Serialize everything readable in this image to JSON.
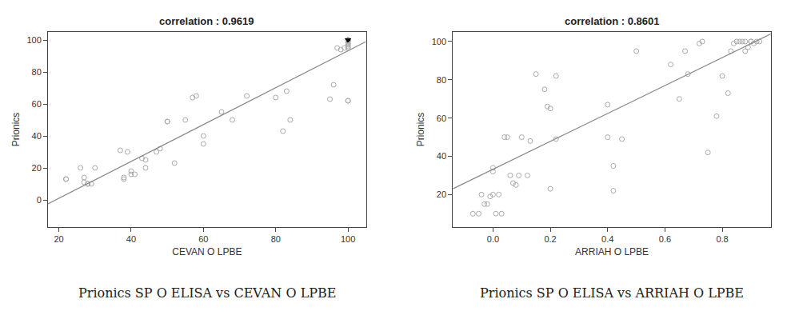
{
  "chart_data": [
    {
      "type": "scatter",
      "title": "correlation : 0.9619",
      "xlabel": "CEVAN O LPBE",
      "ylabel": "Prionics",
      "caption": "Prionics SP O ELISA vs CEVAN O LPBE",
      "xlim": [
        17,
        105
      ],
      "ylim": [
        -17,
        105
      ],
      "xticks": [
        20,
        40,
        60,
        80,
        100
      ],
      "yticks": [
        0,
        20,
        40,
        60,
        80,
        100
      ],
      "grid": false,
      "series": [
        {
          "type": "scatter",
          "marker": "circle-open",
          "color": "#aaaaaa",
          "x": [
            22,
            22,
            26,
            27,
            27,
            28,
            28,
            29,
            30,
            37,
            38,
            38,
            39,
            40,
            40,
            41,
            43,
            44,
            44,
            47,
            48,
            50,
            50,
            52,
            55,
            57,
            58,
            60,
            60,
            65,
            68,
            72,
            80,
            82,
            83,
            84,
            95,
            96,
            97,
            98,
            99,
            100,
            100,
            100,
            100,
            100,
            100,
            100,
            100,
            100,
            100,
            100,
            100
          ],
          "values": [
            13,
            13,
            20,
            11,
            14,
            10,
            10,
            10,
            20,
            31,
            14,
            13,
            30,
            18,
            16,
            16,
            26,
            20,
            25,
            30,
            32,
            49,
            49,
            23,
            50,
            64,
            65,
            40,
            35,
            55,
            50,
            65,
            64,
            43,
            68,
            50,
            63,
            72,
            95,
            94,
            95,
            95,
            96,
            97,
            98,
            99,
            100,
            100,
            100,
            100,
            100,
            62,
            62
          ]
        },
        {
          "type": "scatter",
          "marker": "triangle-down",
          "color": "#000000",
          "x": [
            100,
            100,
            100,
            100,
            100,
            100,
            100,
            100,
            100,
            100,
            100,
            100,
            100,
            100,
            100
          ],
          "values": [
            100,
            100,
            100,
            100,
            100,
            100,
            100,
            100,
            100,
            100,
            100,
            100,
            100,
            100,
            100
          ]
        },
        {
          "type": "line",
          "line_style": "solid",
          "color": "#888888",
          "x": [
            17,
            105
          ],
          "values": [
            -2.5,
            99
          ]
        }
      ]
    },
    {
      "type": "scatter",
      "title": "correlation : 0.8601",
      "xlabel": "ARRIAH O LPBE",
      "ylabel": "Prionics",
      "caption": "Prionics SP O ELISA vs ARRIAH O LPBE",
      "xlim": [
        -0.14,
        0.97
      ],
      "ylim": [
        3,
        105
      ],
      "xticks": [
        {
          "value": 0,
          "label": "0.0"
        },
        0.2,
        0.4,
        0.6,
        0.8
      ],
      "yticks": [
        20,
        40,
        60,
        80,
        100
      ],
      "grid": false,
      "series": [
        {
          "type": "scatter",
          "marker": "circle-open",
          "color": "#aaaaaa",
          "x": [
            -0.07,
            -0.05,
            -0.04,
            -0.03,
            -0.02,
            -0.01,
            0.0,
            0.0,
            0.0,
            0.01,
            0.02,
            0.03,
            0.04,
            0.05,
            0.06,
            0.07,
            0.08,
            0.09,
            0.1,
            0.12,
            0.13,
            0.15,
            0.18,
            0.19,
            0.2,
            0.2,
            0.22,
            0.22,
            0.4,
            0.4,
            0.42,
            0.42,
            0.45,
            0.5,
            0.62,
            0.65,
            0.67,
            0.68,
            0.72,
            0.73,
            0.75,
            0.78,
            0.8,
            0.82,
            0.83,
            0.84,
            0.85,
            0.86,
            0.87,
            0.88,
            0.88,
            0.89,
            0.9,
            0.9,
            0.91,
            0.92,
            0.93
          ],
          "values": [
            10,
            10,
            20,
            15,
            15,
            19,
            20,
            32,
            34,
            10,
            20,
            10,
            50,
            50,
            30,
            26,
            25,
            30,
            50,
            30,
            48,
            83,
            75,
            66,
            65,
            23,
            82,
            49,
            50,
            67,
            22,
            35,
            49,
            95,
            88,
            70,
            95,
            83,
            99,
            100,
            42,
            61,
            82,
            73,
            95,
            99,
            100,
            100,
            100,
            100,
            95,
            97,
            100,
            100,
            99,
            100,
            100
          ]
        },
        {
          "type": "line",
          "line_style": "solid",
          "color": "#888888",
          "x": [
            -0.14,
            0.97
          ],
          "values": [
            23,
            104
          ]
        }
      ]
    }
  ]
}
